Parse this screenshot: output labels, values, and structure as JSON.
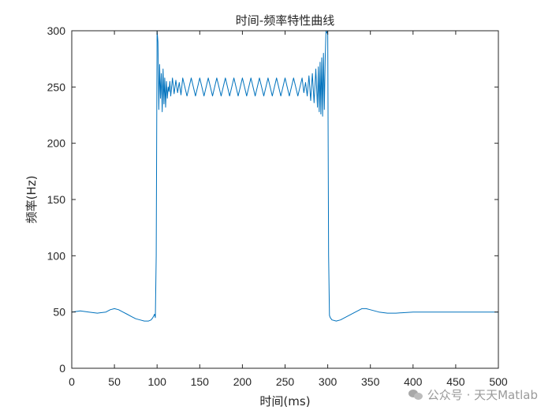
{
  "chart_data": {
    "type": "line",
    "title": "时间-频率特性曲线",
    "xlabel": "时间(ms)",
    "ylabel": "频率(Hz)",
    "xlim": [
      0,
      500
    ],
    "ylim": [
      0,
      300
    ],
    "xticks": [
      0,
      50,
      100,
      150,
      200,
      250,
      300,
      350,
      400,
      450,
      500
    ],
    "yticks": [
      0,
      50,
      100,
      150,
      200,
      250,
      300
    ],
    "grid": false,
    "line_color": "#0072BD",
    "series": [
      {
        "x": [
          0,
          10,
          20,
          30,
          40,
          45,
          50,
          55,
          60,
          65,
          70,
          75,
          80,
          85,
          90,
          93,
          95,
          97,
          98,
          99,
          100,
          101,
          102,
          103,
          104,
          105,
          106,
          107,
          108,
          109,
          110,
          111,
          112,
          113,
          114,
          115,
          116,
          118,
          120,
          122,
          124,
          126,
          128,
          130,
          135,
          140,
          145,
          150,
          155,
          160,
          165,
          170,
          175,
          180,
          185,
          190,
          195,
          200,
          205,
          210,
          215,
          220,
          225,
          230,
          235,
          240,
          245,
          250,
          255,
          260,
          265,
          270,
          272,
          274,
          276,
          278,
          280,
          282,
          284,
          286,
          288,
          289,
          290,
          291,
          292,
          293,
          294,
          295,
          296,
          297,
          298,
          299,
          300,
          301,
          302,
          303,
          305,
          310,
          315,
          320,
          330,
          340,
          345,
          350,
          360,
          370,
          375,
          380,
          400,
          420,
          440,
          460,
          480,
          500
        ],
        "y": [
          50,
          51,
          50,
          49,
          50,
          52,
          53,
          52,
          50,
          48,
          46,
          44,
          43,
          42,
          42,
          43,
          45,
          48,
          45,
          100,
          300,
          290,
          230,
          270,
          240,
          262,
          228,
          266,
          235,
          258,
          232,
          255,
          240,
          250,
          246,
          255,
          242,
          258,
          244,
          256,
          245,
          254,
          243,
          258,
          242,
          258,
          242,
          258,
          242,
          258,
          242,
          258,
          242,
          258,
          242,
          258,
          242,
          258,
          242,
          258,
          242,
          258,
          242,
          258,
          242,
          258,
          242,
          258,
          242,
          258,
          242,
          258,
          245,
          254,
          242,
          260,
          238,
          262,
          236,
          266,
          232,
          268,
          228,
          272,
          226,
          276,
          224,
          280,
          230,
          275,
          300,
          298,
          300,
          100,
          47,
          45,
          43,
          42,
          43,
          45,
          49,
          53,
          53,
          52,
          50,
          49,
          49,
          49,
          50,
          50,
          50,
          50,
          50,
          50
        ]
      }
    ]
  },
  "watermark": {
    "text": "公众号 · 天天Matlab",
    "icon": "wechat-icon"
  }
}
